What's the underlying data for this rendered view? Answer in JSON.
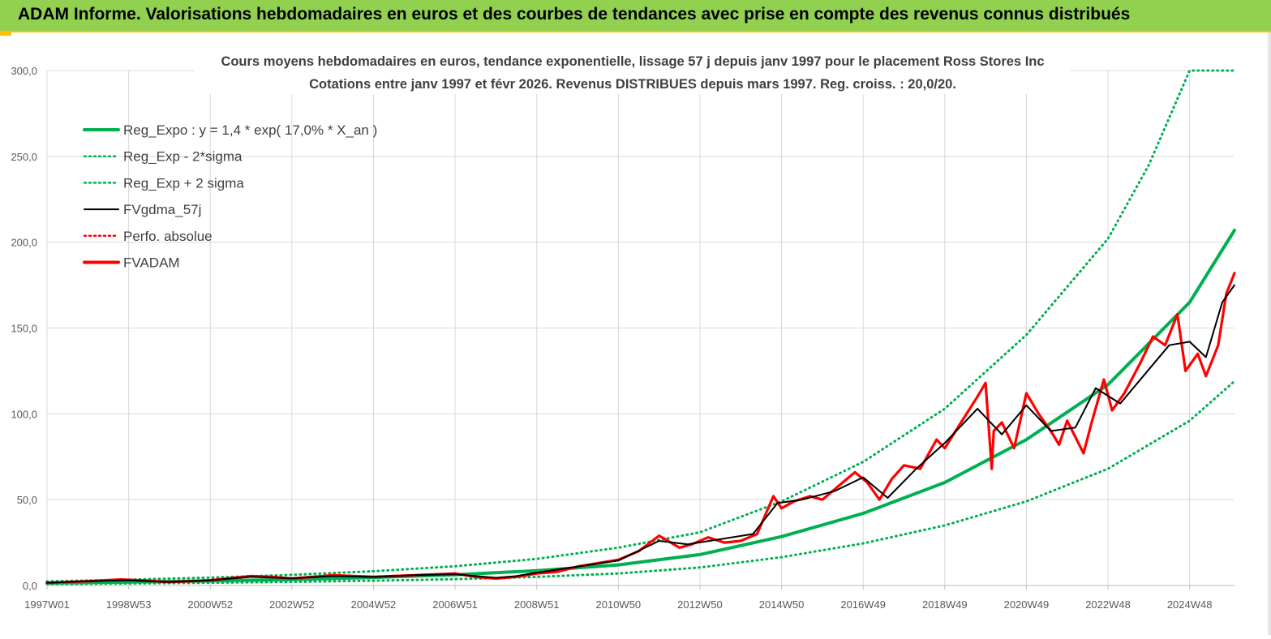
{
  "banner": {
    "title": "ADAM Informe. Valorisations hebdomadaires en euros et des courbes de tendances avec prise en compte des revenus connus distribués"
  },
  "colors": {
    "banner_bg": "#92d050",
    "accent_line": "#ffc000",
    "reg_expo": "#00b050",
    "fvgdma": "#000000",
    "fvadam": "#ff0000",
    "grid": "#d9d9d9"
  },
  "chart_data": {
    "type": "line",
    "title": "Cours moyens hebdomadaires en euros, tendance exponentielle, lissage 57 j depuis janv 1997 pour le placement Ross Stores Inc",
    "subtitle": "Cotations entre janv 1997 et févr 2026. Revenus DISTRIBUES depuis mars 1997. Reg. croiss. : 20,0/20.",
    "xlabel": "",
    "ylabel": "",
    "ylim": [
      0,
      300
    ],
    "grid": true,
    "legend_position": "top-left",
    "y_ticks": [
      "0,0",
      "50,0",
      "100,0",
      "150,0",
      "200,0",
      "250,0",
      "300,0"
    ],
    "x_ticks": [
      {
        "x": 1997.0,
        "label": "1997W01"
      },
      {
        "x": 1999.0,
        "label": "1998W53"
      },
      {
        "x": 2001.0,
        "label": "2000W52"
      },
      {
        "x": 2003.0,
        "label": "2002W52"
      },
      {
        "x": 2005.0,
        "label": "2004W52"
      },
      {
        "x": 2007.0,
        "label": "2006W51"
      },
      {
        "x": 2009.0,
        "label": "2008W51"
      },
      {
        "x": 2011.0,
        "label": "2010W50"
      },
      {
        "x": 2013.0,
        "label": "2012W50"
      },
      {
        "x": 2015.0,
        "label": "2014W50"
      },
      {
        "x": 2017.0,
        "label": "2016W49"
      },
      {
        "x": 2019.0,
        "label": "2018W49"
      },
      {
        "x": 2021.0,
        "label": "2020W49"
      },
      {
        "x": 2023.0,
        "label": "2022W48"
      },
      {
        "x": 2025.0,
        "label": "2024W48"
      }
    ],
    "xlim": [
      1997.0,
      2026.1
    ],
    "series": [
      {
        "name": "Reg_Expo : y = 1,4 * exp( 17,0% *  X_an )",
        "style": "solid-thick",
        "color": "#00b050",
        "x": [
          1997.0,
          1999.0,
          2001.0,
          2003.0,
          2005.0,
          2007.0,
          2009.0,
          2011.0,
          2013.0,
          2015.0,
          2017.0,
          2019.0,
          2021.0,
          2023.0,
          2025.0,
          2026.1
        ],
        "values": [
          1.4,
          2.0,
          2.7,
          3.5,
          4.7,
          6.3,
          8.6,
          12.0,
          18.0,
          28.5,
          42.0,
          60.0,
          85.0,
          117.0,
          165.0,
          207.0
        ]
      },
      {
        "name": "Reg_Exp - 2*sigma",
        "style": "dotted",
        "color": "#00b050",
        "x": [
          1997.0,
          1999.0,
          2001.0,
          2003.0,
          2005.0,
          2007.0,
          2009.0,
          2011.0,
          2013.0,
          2015.0,
          2017.0,
          2019.0,
          2021.0,
          2023.0,
          2025.0,
          2026.1
        ],
        "values": [
          0.8,
          1.2,
          1.6,
          2.1,
          2.8,
          3.7,
          5.0,
          7.0,
          10.5,
          16.5,
          24.5,
          35.0,
          49.0,
          68.0,
          96.0,
          119.0
        ]
      },
      {
        "name": "Reg_Exp + 2 sigma",
        "style": "dotted",
        "color": "#00b050",
        "x": [
          1997.0,
          1999.0,
          2001.0,
          2003.0,
          2005.0,
          2007.0,
          2009.0,
          2011.0,
          2013.0,
          2015.0,
          2017.0,
          2019.0,
          2021.0,
          2023.0,
          2024.0,
          2025.0,
          2026.1
        ],
        "values": [
          2.4,
          3.4,
          4.6,
          6.2,
          8.3,
          11.2,
          15.5,
          22.0,
          31.0,
          49.0,
          72.0,
          103.0,
          146.0,
          202.0,
          245.0,
          300.0,
          300.0
        ]
      },
      {
        "name": "FVgdma_57j",
        "style": "solid-thin",
        "color": "#000000",
        "x": [
          1997.0,
          1998.0,
          1999.0,
          2000.0,
          2001.0,
          2002.0,
          2003.0,
          2004.0,
          2005.0,
          2006.0,
          2007.0,
          2008.0,
          2008.5,
          2009.0,
          2010.0,
          2011.0,
          2012.0,
          2012.7,
          2013.5,
          2014.3,
          2014.9,
          2015.5,
          2016.3,
          2017.0,
          2017.6,
          2018.3,
          2019.0,
          2019.8,
          2020.4,
          2021.0,
          2021.6,
          2022.2,
          2022.7,
          2023.3,
          2023.9,
          2024.5,
          2025.0,
          2025.4,
          2025.8,
          2026.1
        ],
        "values": [
          1.6,
          2.5,
          3.0,
          2.0,
          3.0,
          5.0,
          4.2,
          5.5,
          5.0,
          6.0,
          6.5,
          4.5,
          5.5,
          7.5,
          11.0,
          14.5,
          26.0,
          24.0,
          27.0,
          30.0,
          48.0,
          50.0,
          55.0,
          63.0,
          51.0,
          68.0,
          83.0,
          103.0,
          88.0,
          105.0,
          90.0,
          92.0,
          115.0,
          106.0,
          123.0,
          140.0,
          142.0,
          133.0,
          165.0,
          175.0
        ]
      },
      {
        "name": "Perfo. absolue",
        "style": "dotted",
        "color": "#ff0000",
        "x": [],
        "values": []
      },
      {
        "name": "FVADAM",
        "style": "solid-thick",
        "color": "#ff0000",
        "x": [
          1997.0,
          1998.0,
          1998.8,
          1999.5,
          2000.0,
          2001.0,
          2002.0,
          2002.5,
          2003.0,
          2004.0,
          2005.0,
          2006.0,
          2007.0,
          2007.5,
          2008.0,
          2008.5,
          2009.0,
          2009.5,
          2010.0,
          2010.5,
          2011.0,
          2011.5,
          2012.0,
          2012.5,
          2012.8,
          2013.2,
          2013.6,
          2014.0,
          2014.4,
          2014.8,
          2015.0,
          2015.3,
          2015.7,
          2016.0,
          2016.5,
          2016.8,
          2017.1,
          2017.4,
          2017.7,
          2018.0,
          2018.4,
          2018.8,
          2019.0,
          2019.4,
          2019.8,
          2020.0,
          2020.15,
          2020.2,
          2020.4,
          2020.7,
          2021.0,
          2021.3,
          2021.6,
          2021.8,
          2022.0,
          2022.4,
          2022.6,
          2022.9,
          2023.1,
          2023.4,
          2023.8,
          2024.1,
          2024.4,
          2024.7,
          2024.9,
          2025.2,
          2025.4,
          2025.7,
          2025.9,
          2026.1
        ],
        "values": [
          1.5,
          2.5,
          3.5,
          2.8,
          2.0,
          3.0,
          5.5,
          5.0,
          4.0,
          6.0,
          5.0,
          6.0,
          7.0,
          5.0,
          4.0,
          5.0,
          7.0,
          8.0,
          11.0,
          13.0,
          15.0,
          20.0,
          29.0,
          22.0,
          24.0,
          28.0,
          25.0,
          26.0,
          30.0,
          52.0,
          45.0,
          49.0,
          52.0,
          50.0,
          60.0,
          66.0,
          60.0,
          50.0,
          62.0,
          70.0,
          68.0,
          85.0,
          80.0,
          95.0,
          110.0,
          118.0,
          68.0,
          90.0,
          95.0,
          80.0,
          112.0,
          100.0,
          90.0,
          82.0,
          96.0,
          77.0,
          95.0,
          120.0,
          102.0,
          112.0,
          130.0,
          145.0,
          140.0,
          158.0,
          125.0,
          135.0,
          122.0,
          140.0,
          170.0,
          182.0
        ]
      }
    ]
  }
}
